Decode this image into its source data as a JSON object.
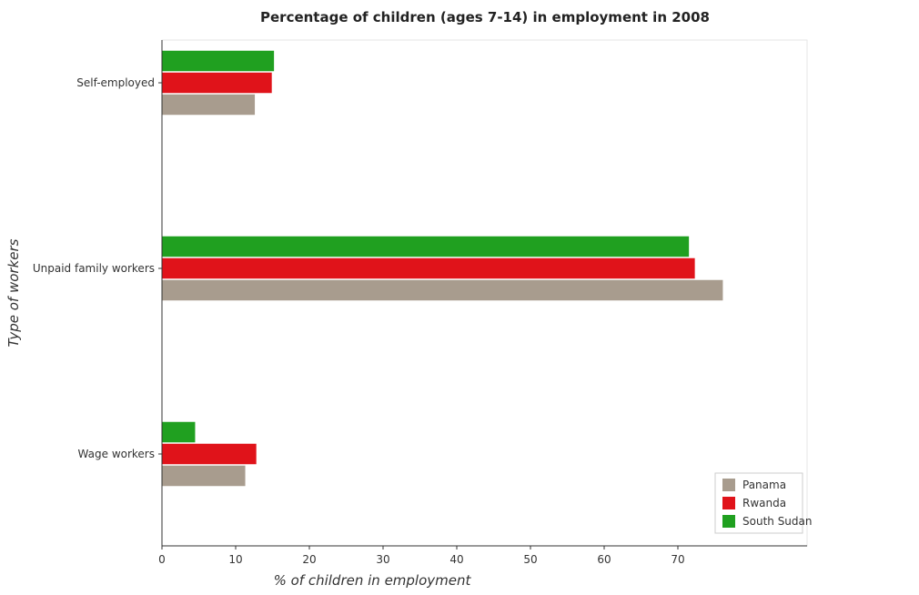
{
  "chart_data": {
    "type": "bar",
    "orientation": "horizontal",
    "title": "Percentage of children (ages 7-14) in employment in 2008",
    "xlabel": "% of children in employment",
    "ylabel": "Type of workers",
    "categories": [
      "Self-employed",
      "Unpaid family workers",
      "Wage workers"
    ],
    "series": [
      {
        "name": "Panama",
        "color": "#a89c8e",
        "values": [
          12.6,
          76.1,
          11.3
        ]
      },
      {
        "name": "Rwanda",
        "color": "#e0131a",
        "values": [
          14.9,
          72.3,
          12.8
        ]
      },
      {
        "name": "South Sudan",
        "color": "#20a020",
        "values": [
          15.2,
          71.5,
          4.5
        ]
      }
    ],
    "xlim": [
      0,
      78
    ],
    "xticks": [
      0,
      10,
      20,
      30,
      40,
      50,
      60,
      70
    ],
    "legend_position": "bottom-right",
    "grid": false
  }
}
